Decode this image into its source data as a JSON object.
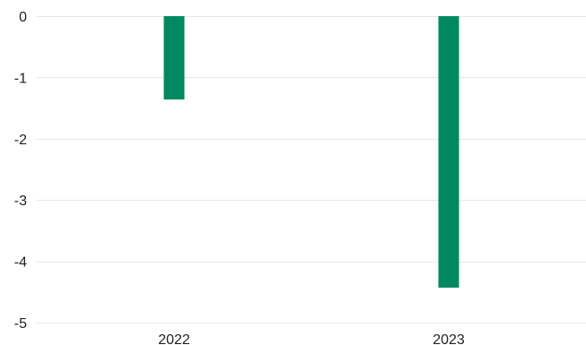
{
  "chart_data": {
    "type": "bar",
    "categories": [
      "2022",
      "2023"
    ],
    "values": [
      -1.36,
      -4.43
    ],
    "ylim": [
      -5,
      0
    ],
    "yticks": [
      0,
      -1,
      -2,
      -3,
      -4,
      -5
    ],
    "ytick_labels": [
      "0",
      "-1",
      "-2",
      "-3",
      "-4",
      "-5"
    ],
    "grid": true,
    "legend": "none",
    "title": "",
    "xlabel": "",
    "ylabel": "",
    "colors": {
      "bar": "#038962",
      "grid": "#e6e6e6",
      "text": "#222222"
    }
  }
}
